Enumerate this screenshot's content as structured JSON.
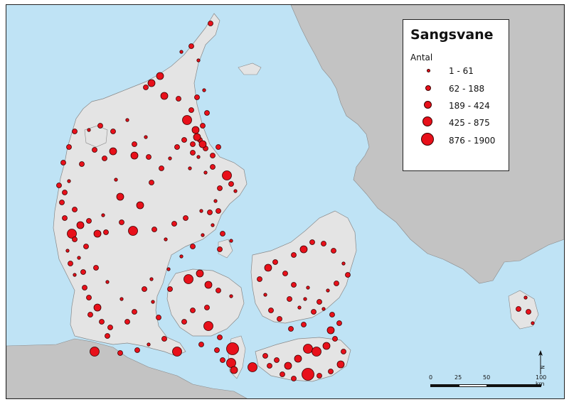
{
  "legend": {
    "title": "Sangsvane",
    "subtitle": "Antal",
    "classes": [
      {
        "label": "1 - 61"
      },
      {
        "label": "62 - 188"
      },
      {
        "label": "189 - 424"
      },
      {
        "label": "425 - 875"
      },
      {
        "label": "876 - 1900"
      }
    ]
  },
  "scale_bar": {
    "ticks": [
      "0",
      "25",
      "50",
      "100 km"
    ]
  },
  "north_arrow": {
    "label": "N"
  },
  "colors": {
    "sea": "#bfe3f5",
    "land_denmark": "#e4e4e4",
    "land_other": "#c3c3c3",
    "symbol_fill": "#e8101a",
    "symbol_stroke": "#3a0000"
  }
}
